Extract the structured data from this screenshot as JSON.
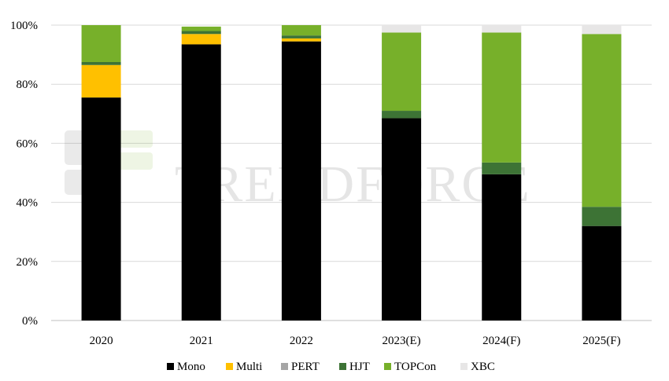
{
  "watermark": {
    "text": "TRENDFORCE"
  },
  "chart_data": {
    "type": "bar",
    "stacked": true,
    "categories": [
      "2020",
      "2021",
      "2022",
      "2023(E)",
      "2024(F)",
      "2025(F)"
    ],
    "series": [
      {
        "name": "Mono",
        "color": "#000000",
        "values": [
          75.5,
          93.5,
          94.5,
          68.5,
          49.5,
          32.0
        ]
      },
      {
        "name": "Multi",
        "color": "#ffc000",
        "values": [
          11.0,
          3.5,
          1.0,
          0.0,
          0.0,
          0.0
        ]
      },
      {
        "name": "PERT",
        "color": "#a5a5a5",
        "values": [
          0.0,
          0.0,
          0.0,
          0.0,
          0.0,
          0.0
        ]
      },
      {
        "name": "HJT",
        "color": "#3d7335",
        "values": [
          1.0,
          1.0,
          1.0,
          2.5,
          4.0,
          6.5
        ]
      },
      {
        "name": "TOPCon",
        "color": "#77b02a",
        "values": [
          12.5,
          1.5,
          3.5,
          26.5,
          44.0,
          58.5
        ]
      },
      {
        "name": "XBC",
        "color": "#e7e6e6",
        "values": [
          0.0,
          0.0,
          0.0,
          2.5,
          2.5,
          3.0
        ]
      }
    ],
    "ylim": [
      0,
      100
    ],
    "yticks": [
      "0%",
      "20%",
      "40%",
      "60%",
      "80%",
      "100%"
    ],
    "ytick_values": [
      0,
      20,
      40,
      60,
      80,
      100
    ],
    "grid": true,
    "legend_position": "bottom",
    "title": "",
    "xlabel": "",
    "ylabel": ""
  }
}
